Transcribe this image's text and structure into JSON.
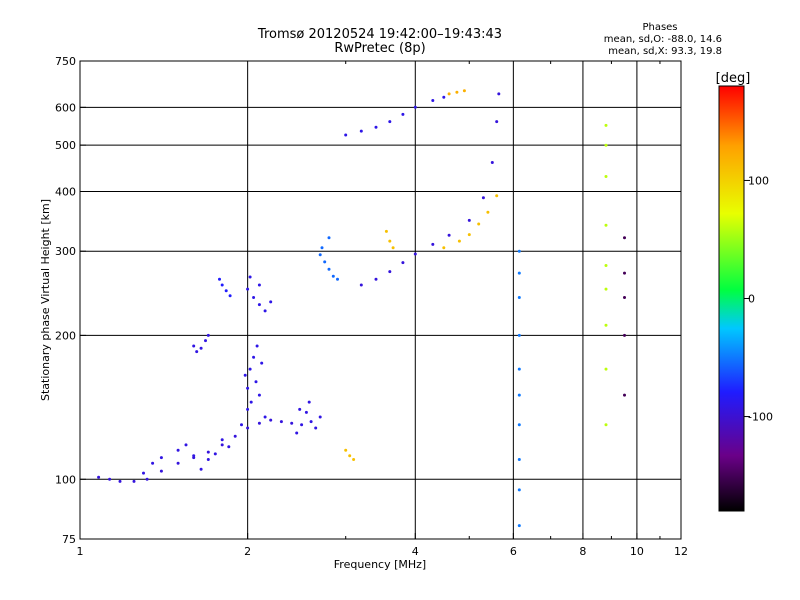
{
  "chart_data": {
    "type": "scatter",
    "title": "Tromsø 20120524 19:42:00–19:43:43",
    "subtitle": "RwPretec (8p)",
    "xlabel": "Frequency [MHz]",
    "ylabel": "Stationary phase Virtual Height [km]",
    "x_scale": "log",
    "y_scale": "log",
    "xlim": [
      1,
      12
    ],
    "ylim": [
      75,
      750
    ],
    "x_ticks": [
      "1",
      "2",
      "4",
      "6",
      "8",
      "10",
      "12"
    ],
    "x_tick_values": [
      1,
      2,
      4,
      6,
      8,
      10,
      12
    ],
    "y_ticks": [
      "75",
      "100",
      "200",
      "300",
      "400",
      "500",
      "600",
      "750"
    ],
    "y_tick_values": [
      75,
      100,
      200,
      300,
      400,
      500,
      600,
      750
    ],
    "grid": true,
    "colorbar": {
      "label": "[deg]",
      "range": [
        -180,
        180
      ],
      "ticks": [
        "100",
        "0",
        "-100"
      ],
      "tick_values": [
        100,
        0,
        -100
      ],
      "colors": [
        "#000000",
        "#6a0088",
        "#1f1cff",
        "#00c8ff",
        "#00ff40",
        "#e8ff00",
        "#ffa000",
        "#ff0000"
      ]
    },
    "phases": {
      "header": "Phases",
      "o_mode": "mean, sd,O:  -88.0, 14.6",
      "x_mode": "mean, sd,X:  93.3, 19.8"
    },
    "series": [
      {
        "values": [
          [
            1.08,
            101
          ],
          [
            1.13,
            100
          ],
          [
            1.18,
            99
          ],
          [
            1.25,
            99
          ],
          [
            1.32,
            100
          ],
          [
            1.4,
            104
          ],
          [
            1.5,
            108
          ],
          [
            1.6,
            111
          ],
          [
            1.7,
            114
          ],
          [
            1.8,
            118
          ],
          [
            1.9,
            123
          ],
          [
            2.0,
            128
          ],
          [
            2.1,
            131
          ],
          [
            2.2,
            133
          ],
          [
            2.3,
            132
          ],
          [
            2.4,
            131
          ]
        ],
        "phase": -95
      },
      {
        "values": [
          [
            1.3,
            103
          ],
          [
            1.35,
            108
          ],
          [
            1.4,
            111
          ],
          [
            1.5,
            115
          ],
          [
            1.55,
            118
          ],
          [
            1.6,
            112
          ],
          [
            1.65,
            105
          ],
          [
            1.7,
            110
          ],
          [
            1.75,
            113
          ],
          [
            1.8,
            121
          ],
          [
            1.85,
            117
          ]
        ],
        "phase": -92
      },
      {
        "values": [
          [
            1.95,
            130
          ],
          [
            2.0,
            140
          ],
          [
            2.0,
            155
          ],
          [
            2.02,
            170
          ],
          [
            2.05,
            180
          ],
          [
            2.07,
            160
          ],
          [
            2.1,
            150
          ],
          [
            2.12,
            175
          ],
          [
            2.15,
            135
          ],
          [
            1.98,
            165
          ],
          [
            2.03,
            145
          ],
          [
            2.08,
            190
          ]
        ],
        "phase": -90
      },
      {
        "values": [
          [
            2.45,
            125
          ],
          [
            2.5,
            130
          ],
          [
            2.55,
            138
          ],
          [
            2.6,
            132
          ],
          [
            2.65,
            128
          ],
          [
            2.7,
            135
          ],
          [
            2.48,
            140
          ],
          [
            2.58,
            145
          ]
        ],
        "phase": -92
      },
      {
        "values": [
          [
            1.6,
            190
          ],
          [
            1.62,
            185
          ],
          [
            1.65,
            188
          ],
          [
            1.68,
            195
          ],
          [
            1.7,
            200
          ]
        ],
        "phase": -92
      },
      {
        "values": [
          [
            1.78,
            262
          ],
          [
            1.8,
            255
          ],
          [
            1.83,
            248
          ],
          [
            1.86,
            242
          ]
        ],
        "phase": -80
      },
      {
        "values": [
          [
            2.0,
            250
          ],
          [
            2.05,
            240
          ],
          [
            2.1,
            232
          ],
          [
            2.15,
            225
          ],
          [
            2.2,
            235
          ],
          [
            2.1,
            255
          ],
          [
            2.02,
            265
          ]
        ],
        "phase": -90
      },
      {
        "values": [
          [
            2.7,
            295
          ],
          [
            2.75,
            285
          ],
          [
            2.8,
            275
          ],
          [
            2.85,
            266
          ],
          [
            2.9,
            262
          ],
          [
            2.72,
            305
          ],
          [
            2.8,
            320
          ]
        ],
        "phase": -55
      },
      {
        "values": [
          [
            3.2,
            255
          ],
          [
            3.4,
            262
          ],
          [
            3.6,
            272
          ],
          [
            3.8,
            284
          ],
          [
            4.0,
            296
          ],
          [
            4.3,
            310
          ],
          [
            4.6,
            324
          ],
          [
            5.0,
            348
          ],
          [
            5.3,
            388
          ],
          [
            5.5,
            460
          ],
          [
            5.6,
            560
          ],
          [
            5.65,
            640
          ]
        ],
        "phase": -95
      },
      {
        "values": [
          [
            4.5,
            305
          ],
          [
            4.8,
            315
          ],
          [
            5.0,
            325
          ],
          [
            5.2,
            342
          ],
          [
            5.4,
            362
          ],
          [
            5.6,
            392
          ]
        ],
        "phase": 110
      },
      {
        "values": [
          [
            3.0,
            525
          ],
          [
            3.2,
            535
          ],
          [
            3.4,
            545
          ],
          [
            3.6,
            560
          ],
          [
            3.8,
            580
          ],
          [
            4.0,
            600
          ],
          [
            4.3,
            620
          ],
          [
            4.5,
            630
          ]
        ],
        "phase": -90
      },
      {
        "values": [
          [
            4.6,
            640
          ],
          [
            4.75,
            645
          ],
          [
            4.9,
            650
          ]
        ],
        "phase": 120
      },
      {
        "values": [
          [
            3.55,
            330
          ],
          [
            3.6,
            315
          ],
          [
            3.65,
            305
          ]
        ],
        "phase": 110
      },
      {
        "values": [
          [
            3.0,
            115
          ],
          [
            3.05,
            112
          ],
          [
            3.1,
            110
          ]
        ],
        "phase": 110
      },
      {
        "values": [
          [
            6.15,
            80
          ],
          [
            6.15,
            95
          ],
          [
            6.15,
            110
          ],
          [
            6.15,
            130
          ],
          [
            6.15,
            150
          ],
          [
            6.15,
            170
          ],
          [
            6.15,
            200
          ],
          [
            6.15,
            240
          ],
          [
            6.15,
            270
          ],
          [
            6.15,
            300
          ]
        ],
        "phase": -50
      },
      {
        "values": [
          [
            8.8,
            130
          ],
          [
            8.8,
            170
          ],
          [
            8.8,
            210
          ],
          [
            8.8,
            250
          ],
          [
            8.8,
            280
          ],
          [
            8.8,
            340
          ],
          [
            8.8,
            430
          ],
          [
            8.8,
            500
          ],
          [
            8.8,
            550
          ]
        ],
        "phase": 60
      },
      {
        "values": [
          [
            9.5,
            150
          ],
          [
            9.5,
            200
          ],
          [
            9.5,
            240
          ],
          [
            9.5,
            270
          ],
          [
            9.5,
            320
          ]
        ],
        "phase": -150
      }
    ]
  }
}
